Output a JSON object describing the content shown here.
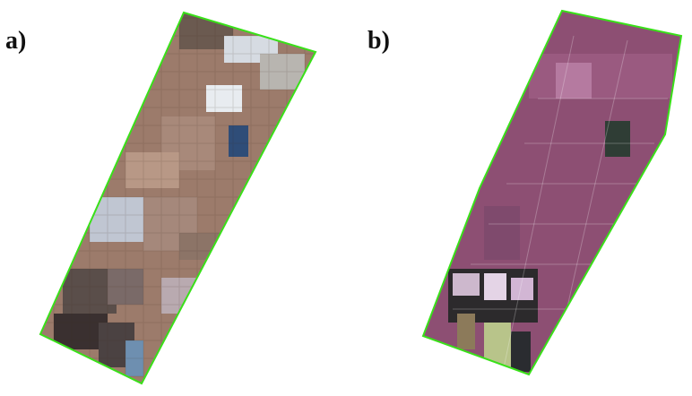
{
  "panels": [
    {
      "label": "a)"
    },
    {
      "label": "b)"
    }
  ],
  "colors": {
    "outline": "#39e019",
    "field_magenta": "#8d4f73",
    "field_dark": "#3a3a3a",
    "field_light": "#e8d8ea",
    "field_lowres_brown": "#9c7b6b",
    "field_lowres_blue": "#4f6d93"
  }
}
